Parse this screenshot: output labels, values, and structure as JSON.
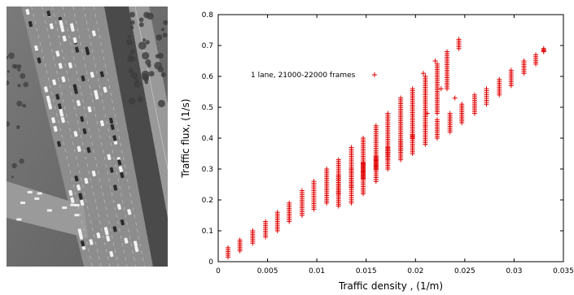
{
  "figure": {
    "photo": {
      "subject": "aerial-highway-photo"
    }
  },
  "colors": {
    "series": "#e00000",
    "axis": "#000000",
    "frame": "#000000"
  },
  "chart_data": {
    "type": "scatter",
    "title": "",
    "xlabel": "Traffic density , (1/m)",
    "ylabel": "Traffic flux, (1/s)",
    "xlim": [
      0,
      0.035
    ],
    "ylim": [
      0,
      0.8
    ],
    "xticks": [
      "0",
      "0.005",
      "0.01",
      "0.015",
      "0.02",
      "0.025",
      "0.03",
      "0.035"
    ],
    "yticks": [
      "0",
      "0.1",
      "0.2",
      "0.3",
      "0.4",
      "0.5",
      "0.6",
      "0.7",
      "0.8"
    ],
    "grid": false,
    "legend_position": "top-left",
    "series": [
      {
        "name": "1 lane, 21000-22000 frames",
        "marker": "+",
        "upper_branch_columns": [
          {
            "x": 0.001,
            "ymin": 0.015,
            "ymax": 0.045
          },
          {
            "x": 0.0022,
            "ymin": 0.035,
            "ymax": 0.07
          },
          {
            "x": 0.0035,
            "ymin": 0.06,
            "ymax": 0.1
          },
          {
            "x": 0.0048,
            "ymin": 0.08,
            "ymax": 0.13
          },
          {
            "x": 0.006,
            "ymin": 0.1,
            "ymax": 0.16
          },
          {
            "x": 0.0072,
            "ymin": 0.13,
            "ymax": 0.19
          },
          {
            "x": 0.0085,
            "ymin": 0.15,
            "ymax": 0.23
          },
          {
            "x": 0.0097,
            "ymin": 0.17,
            "ymax": 0.26
          },
          {
            "x": 0.011,
            "ymin": 0.19,
            "ymax": 0.3
          },
          {
            "x": 0.0122,
            "ymin": 0.22,
            "ymax": 0.33
          },
          {
            "x": 0.0135,
            "ymin": 0.24,
            "ymax": 0.37
          },
          {
            "x": 0.0147,
            "ymin": 0.27,
            "ymax": 0.4
          },
          {
            "x": 0.016,
            "ymin": 0.3,
            "ymax": 0.44
          },
          {
            "x": 0.0172,
            "ymin": 0.33,
            "ymax": 0.48
          },
          {
            "x": 0.0185,
            "ymin": 0.36,
            "ymax": 0.53
          },
          {
            "x": 0.0197,
            "ymin": 0.4,
            "ymax": 0.56
          },
          {
            "x": 0.021,
            "ymin": 0.44,
            "ymax": 0.6
          },
          {
            "x": 0.0222,
            "ymin": 0.48,
            "ymax": 0.64
          },
          {
            "x": 0.0232,
            "ymin": 0.56,
            "ymax": 0.68
          },
          {
            "x": 0.0244,
            "ymin": 0.69,
            "ymax": 0.72
          }
        ],
        "lower_branch_columns": [
          {
            "x": 0.0122,
            "ymin": 0.18,
            "ymax": 0.28
          },
          {
            "x": 0.0135,
            "ymin": 0.19,
            "ymax": 0.3
          },
          {
            "x": 0.0147,
            "ymin": 0.22,
            "ymax": 0.32
          },
          {
            "x": 0.016,
            "ymin": 0.26,
            "ymax": 0.34
          },
          {
            "x": 0.0172,
            "ymin": 0.3,
            "ymax": 0.37
          },
          {
            "x": 0.0185,
            "ymin": 0.33,
            "ymax": 0.39
          },
          {
            "x": 0.0197,
            "ymin": 0.35,
            "ymax": 0.41
          },
          {
            "x": 0.021,
            "ymin": 0.38,
            "ymax": 0.44
          },
          {
            "x": 0.0222,
            "ymin": 0.4,
            "ymax": 0.46
          },
          {
            "x": 0.0235,
            "ymin": 0.42,
            "ymax": 0.48
          },
          {
            "x": 0.0247,
            "ymin": 0.45,
            "ymax": 0.51
          },
          {
            "x": 0.026,
            "ymin": 0.48,
            "ymax": 0.54
          },
          {
            "x": 0.0272,
            "ymin": 0.51,
            "ymax": 0.56
          },
          {
            "x": 0.0285,
            "ymin": 0.54,
            "ymax": 0.59
          },
          {
            "x": 0.0297,
            "ymin": 0.57,
            "ymax": 0.62
          },
          {
            "x": 0.031,
            "ymin": 0.61,
            "ymax": 0.65
          },
          {
            "x": 0.0322,
            "ymin": 0.64,
            "ymax": 0.67
          },
          {
            "x": 0.033,
            "ymin": 0.68,
            "ymax": 0.69
          }
        ],
        "outliers": [
          {
            "x": 0.0208,
            "y": 0.61
          },
          {
            "x": 0.022,
            "y": 0.65
          },
          {
            "x": 0.0212,
            "y": 0.48
          },
          {
            "x": 0.024,
            "y": 0.53
          },
          {
            "x": 0.0226,
            "y": 0.56
          }
        ]
      }
    ]
  }
}
